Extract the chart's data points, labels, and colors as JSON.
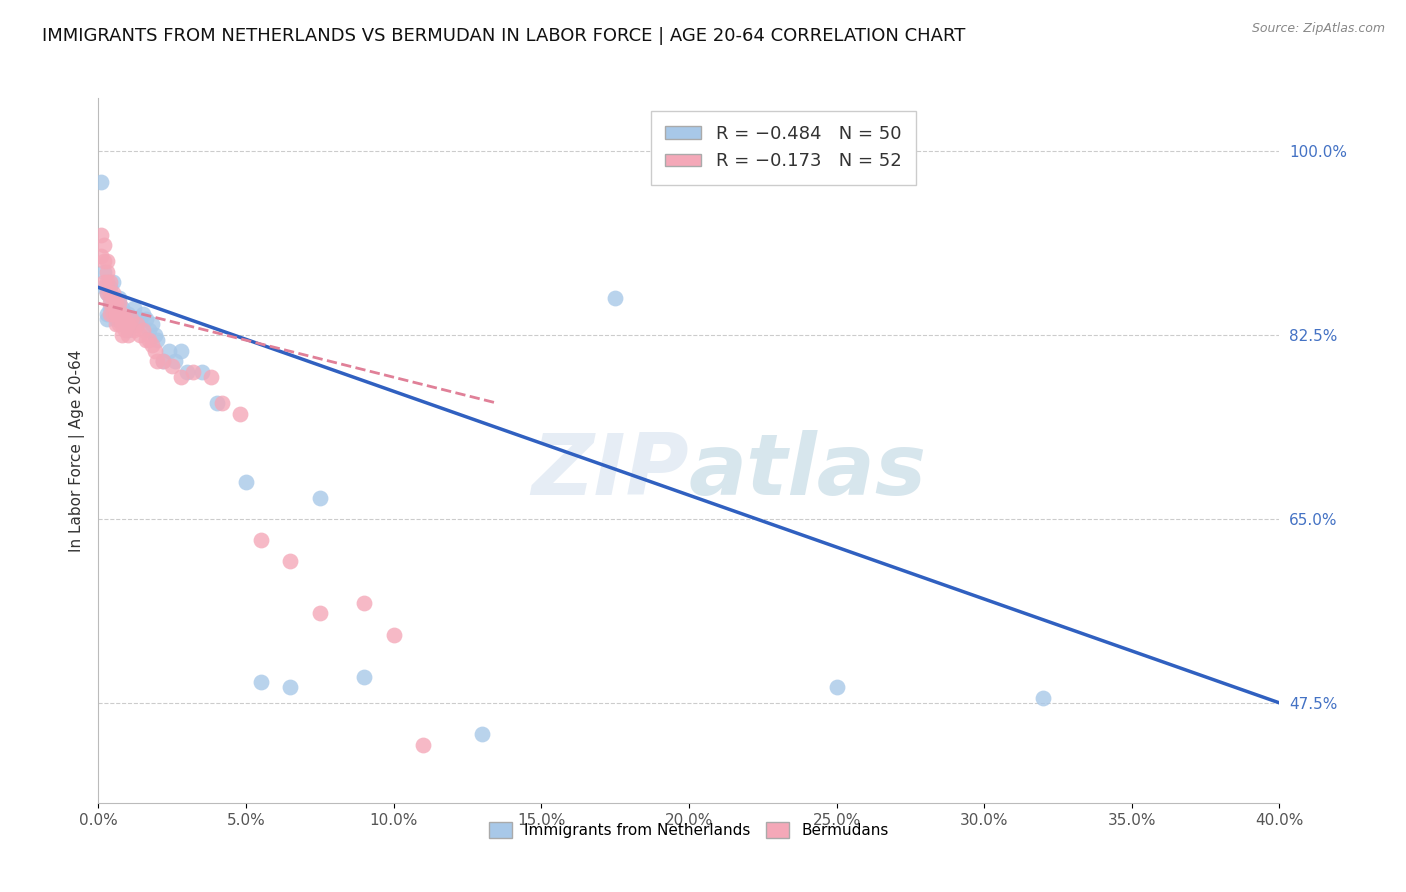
{
  "title": "IMMIGRANTS FROM NETHERLANDS VS BERMUDAN IN LABOR FORCE | AGE 20-64 CORRELATION CHART",
  "source": "Source: ZipAtlas.com",
  "ylabel": "In Labor Force | Age 20-64",
  "xlim": [
    0.0,
    0.4
  ],
  "ylim": [
    0.38,
    1.05
  ],
  "xticks": [
    0.0,
    0.05,
    0.1,
    0.15,
    0.2,
    0.25,
    0.3,
    0.35,
    0.4
  ],
  "yticks_right": [
    0.475,
    0.65,
    0.825,
    1.0
  ],
  "ytick_labels_right": [
    "47.5%",
    "65.0%",
    "82.5%",
    "100.0%"
  ],
  "xtick_labels": [
    "0.0%",
    "5.0%",
    "10.0%",
    "15.0%",
    "20.0%",
    "25.0%",
    "30.0%",
    "35.0%",
    "40.0%"
  ],
  "legend_blue_r": "R = −0.484",
  "legend_blue_n": "N = 50",
  "legend_pink_r": "R = −0.173",
  "legend_pink_n": "N = 52",
  "blue_color": "#A8C8E8",
  "pink_color": "#F4A8B8",
  "blue_line_color": "#3060C0",
  "pink_line_color": "#E08098",
  "title_fontsize": 13,
  "axis_label_fontsize": 11,
  "tick_fontsize": 11,
  "blue_scatter_x": [
    0.001,
    0.002,
    0.002,
    0.003,
    0.003,
    0.003,
    0.004,
    0.004,
    0.004,
    0.005,
    0.005,
    0.005,
    0.006,
    0.006,
    0.006,
    0.007,
    0.007,
    0.007,
    0.008,
    0.008,
    0.009,
    0.009,
    0.01,
    0.01,
    0.011,
    0.012,
    0.013,
    0.014,
    0.015,
    0.016,
    0.017,
    0.018,
    0.019,
    0.02,
    0.022,
    0.024,
    0.026,
    0.028,
    0.03,
    0.035,
    0.04,
    0.05,
    0.055,
    0.065,
    0.075,
    0.09,
    0.13,
    0.175,
    0.25,
    0.32
  ],
  "blue_scatter_y": [
    0.97,
    0.885,
    0.87,
    0.865,
    0.845,
    0.84,
    0.87,
    0.86,
    0.85,
    0.875,
    0.86,
    0.855,
    0.84,
    0.85,
    0.845,
    0.84,
    0.855,
    0.86,
    0.845,
    0.85,
    0.84,
    0.835,
    0.83,
    0.845,
    0.84,
    0.85,
    0.835,
    0.84,
    0.845,
    0.84,
    0.83,
    0.835,
    0.825,
    0.82,
    0.8,
    0.81,
    0.8,
    0.81,
    0.79,
    0.79,
    0.76,
    0.685,
    0.495,
    0.49,
    0.67,
    0.5,
    0.445,
    0.86,
    0.49,
    0.48
  ],
  "pink_scatter_x": [
    0.001,
    0.001,
    0.002,
    0.002,
    0.002,
    0.003,
    0.003,
    0.003,
    0.003,
    0.004,
    0.004,
    0.004,
    0.004,
    0.005,
    0.005,
    0.005,
    0.006,
    0.006,
    0.006,
    0.007,
    0.007,
    0.007,
    0.008,
    0.008,
    0.008,
    0.009,
    0.009,
    0.01,
    0.01,
    0.011,
    0.012,
    0.013,
    0.014,
    0.015,
    0.016,
    0.017,
    0.018,
    0.019,
    0.02,
    0.022,
    0.025,
    0.028,
    0.032,
    0.038,
    0.042,
    0.048,
    0.055,
    0.065,
    0.075,
    0.09,
    0.1,
    0.11
  ],
  "pink_scatter_y": [
    0.92,
    0.9,
    0.91,
    0.895,
    0.875,
    0.895,
    0.885,
    0.875,
    0.865,
    0.875,
    0.865,
    0.855,
    0.845,
    0.865,
    0.855,
    0.845,
    0.855,
    0.845,
    0.835,
    0.855,
    0.845,
    0.835,
    0.845,
    0.835,
    0.825,
    0.84,
    0.83,
    0.835,
    0.825,
    0.84,
    0.83,
    0.835,
    0.825,
    0.83,
    0.82,
    0.82,
    0.815,
    0.81,
    0.8,
    0.8,
    0.795,
    0.785,
    0.79,
    0.785,
    0.76,
    0.75,
    0.63,
    0.61,
    0.56,
    0.57,
    0.54,
    0.435
  ],
  "blue_line_x0": 0.0,
  "blue_line_x1": 0.4,
  "blue_line_y0": 0.87,
  "blue_line_y1": 0.475,
  "pink_line_x0": 0.0,
  "pink_line_x1": 0.135,
  "pink_line_y0": 0.855,
  "pink_line_y1": 0.76
}
